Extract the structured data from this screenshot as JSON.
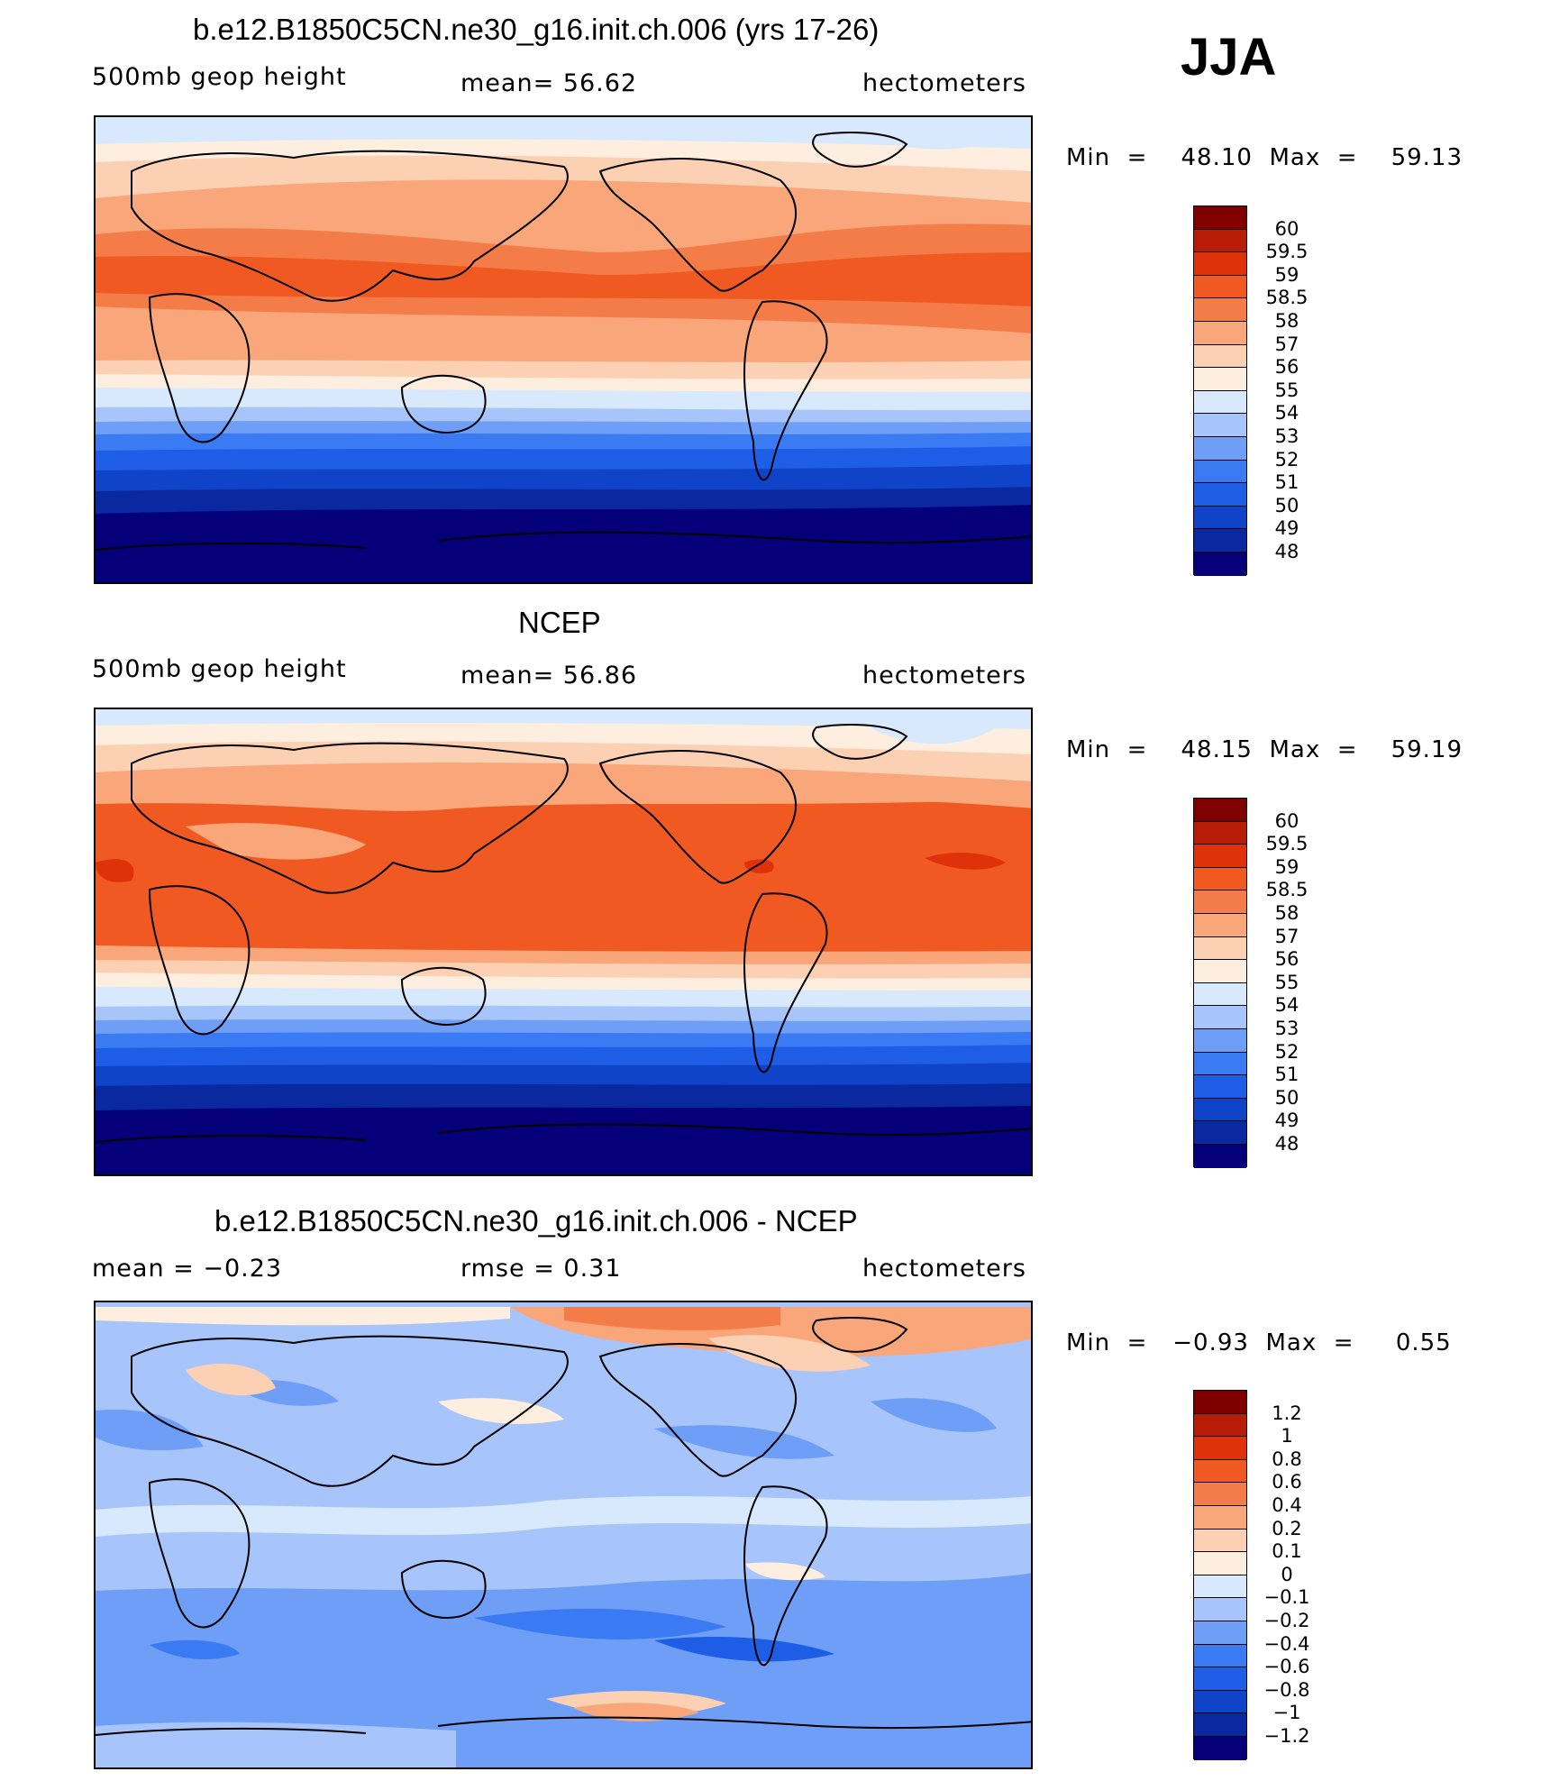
{
  "season": "JJA",
  "colors": {
    "abs_scale": [
      "#04007a",
      "#0a28a0",
      "#0f43c8",
      "#1e5ee6",
      "#3a7af2",
      "#6f9ef6",
      "#a7c5fa",
      "#d8e8fd",
      "#fdeedf",
      "#fbd0b3",
      "#f8a67a",
      "#f47c48",
      "#f05a22",
      "#e0320a",
      "#b81c06",
      "#800000"
    ],
    "diff_scale": [
      "#04007a",
      "#0a28a0",
      "#0f43c8",
      "#1e5ee6",
      "#3a7af2",
      "#6f9ef6",
      "#a7c5fa",
      "#d8e8fd",
      "#fdeedf",
      "#fbd0b3",
      "#f8a67a",
      "#f47c48",
      "#f05a22",
      "#e0320a",
      "#b81c06",
      "#800000"
    ]
  },
  "panels": [
    {
      "title": "b.e12.B1850C5CN.ne30_g16.init.ch.006 (yrs 17-26)",
      "left_label": "500mb  geop  height",
      "mean_label": "mean=   56.62",
      "units": "hectometers",
      "min_max": "Min  =    48.10  Max  =    59.13",
      "colorbar_labels": [
        "60",
        "59.5",
        "59",
        "58.5",
        "58",
        "57",
        "56",
        "55",
        "54",
        "53",
        "52",
        "51",
        "50",
        "49",
        "48"
      ]
    },
    {
      "title": "NCEP",
      "left_label": "500mb  geop  height",
      "mean_label": "mean=   56.86",
      "units": "hectometers",
      "min_max": "Min  =    48.15  Max  =    59.19",
      "colorbar_labels": [
        "60",
        "59.5",
        "59",
        "58.5",
        "58",
        "57",
        "56",
        "55",
        "54",
        "53",
        "52",
        "51",
        "50",
        "49",
        "48"
      ]
    },
    {
      "title": "b.e12.B1850C5CN.ne30_g16.init.ch.006 - NCEP",
      "left_label": "mean  =    −0.23",
      "mean_label": "rmse  =     0.31",
      "units": "hectometers",
      "min_max": "Min  =   −0.93  Max  =     0.55",
      "colorbar_labels": [
        "1.2",
        "1",
        "0.8",
        "0.6",
        "0.4",
        "0.2",
        "0.1",
        "0",
        "−0.1",
        "−0.2",
        "−0.4",
        "−0.6",
        "−0.8",
        "−1",
        "−1.2"
      ]
    }
  ]
}
